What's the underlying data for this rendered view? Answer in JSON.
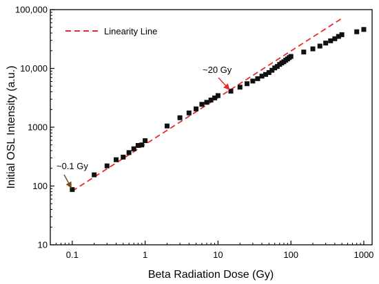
{
  "chart_data": {
    "type": "scatter",
    "xscale": "log",
    "yscale": "log",
    "xlim": [
      0.05,
      1300
    ],
    "ylim": [
      10,
      100000
    ],
    "xlabel": "Beta Radiation Dose (Gy)",
    "ylabel": "Initial OSL Intensity (a.u.)",
    "x_tick_labels": [
      "0.1",
      "1",
      "10",
      "100",
      "1000"
    ],
    "y_tick_labels": [
      "10",
      "100",
      "1000",
      "10,000",
      "100,000"
    ],
    "x_ticks": [
      0.1,
      1,
      10,
      100,
      1000
    ],
    "y_ticks": [
      10,
      100,
      1000,
      10000,
      100000
    ],
    "grid": false,
    "legend": {
      "position": "top-left",
      "label": "Linearity Line",
      "color": "#e8282a"
    },
    "series": [
      {
        "marker": "square",
        "color": "#111111",
        "x": [
          0.1,
          0.2,
          0.3,
          0.4,
          0.5,
          0.6,
          0.7,
          0.8,
          0.9,
          1,
          2,
          3,
          4,
          5,
          6,
          7,
          8,
          9,
          10,
          15,
          20,
          25,
          30,
          35,
          40,
          45,
          50,
          55,
          60,
          65,
          70,
          75,
          80,
          85,
          90,
          95,
          100,
          150,
          200,
          250,
          300,
          350,
          400,
          450,
          500,
          800,
          1000
        ],
        "y": [
          87,
          155,
          220,
          280,
          310,
          370,
          430,
          490,
          500,
          590,
          1050,
          1450,
          1750,
          2050,
          2450,
          2650,
          2900,
          3150,
          3450,
          4100,
          4800,
          5500,
          6100,
          6700,
          7400,
          7900,
          8500,
          9300,
          10200,
          10800,
          11700,
          12400,
          13000,
          13800,
          14500,
          15300,
          16000,
          19000,
          21500,
          24000,
          27000,
          29500,
          32000,
          35000,
          37500,
          42000,
          46000
        ]
      }
    ],
    "linearity_line": {
      "x": [
        0.1,
        500
      ],
      "y": [
        82,
        71000
      ],
      "style": "dashed",
      "color": "#e8282a"
    },
    "annotations": [
      {
        "text": "~0.1 Gy",
        "x": 0.1,
        "y": 87,
        "arrow_color": "#7a4a1e"
      },
      {
        "text": "~20 Gy",
        "x": 15,
        "y": 4100,
        "arrow_color": "#e8282a"
      }
    ]
  }
}
